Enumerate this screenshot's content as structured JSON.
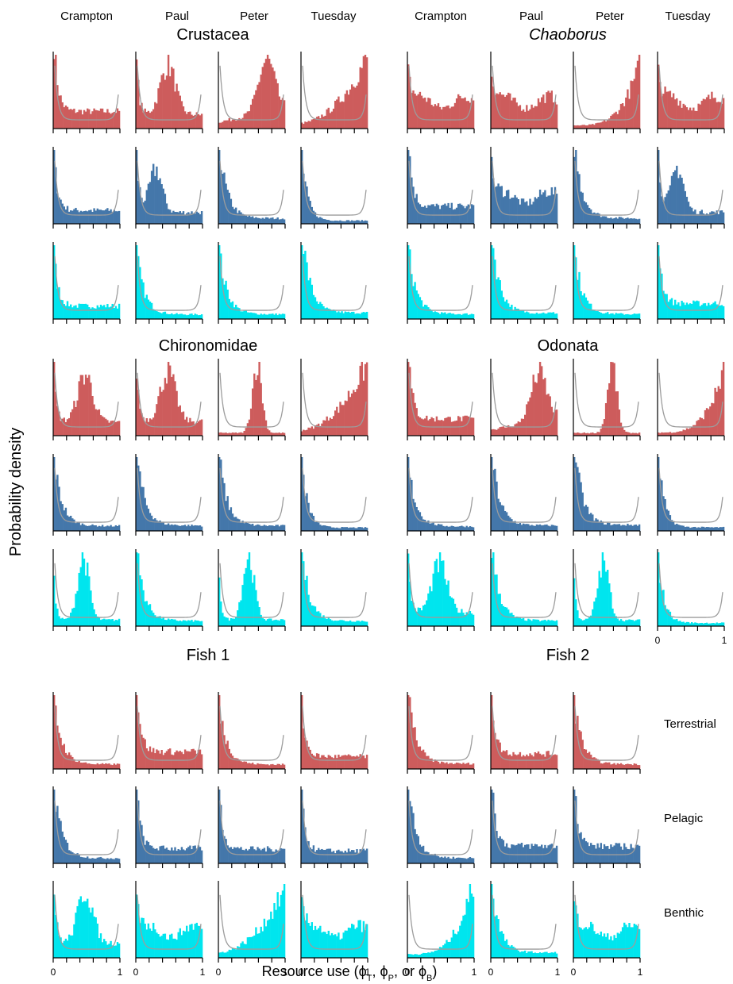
{
  "figure": {
    "y_axis_label": "Probability density",
    "x_axis_label": "Resource use (ϕ",
    "x_axis_label_parts": [
      "Resource use (",
      "ϕ",
      "T",
      ", ",
      "ϕ",
      "P",
      ", or ",
      "ϕ",
      "B",
      ")"
    ],
    "lakes": [
      "Crampton",
      "Paul",
      "Peter",
      "Tuesday"
    ],
    "resource_rows": [
      "Terrestrial",
      "Pelagic",
      "Benthic"
    ],
    "tick_labels": [
      "0",
      "1"
    ]
  },
  "colors": {
    "terrestrial": "#cd5c5c",
    "pelagic": "#4477aa",
    "benthic": "#00e5ee",
    "reference_curve": "#9c9c9c"
  },
  "chart_data": {
    "type": "histogram-grid",
    "xlim": [
      0,
      1
    ],
    "description_series": "each panel: histogram of posterior resource-use proportion with grey reference (prior) density curve",
    "groups": [
      {
        "name": "Crustacea",
        "italic": false,
        "lakes": [
          "Crampton",
          "Paul",
          "Peter",
          "Tuesday"
        ],
        "panels": {
          "Terrestrial": [
            "decreasing-flat",
            "hump-mid",
            "increasing-hump",
            "increasing"
          ],
          "Pelagic": [
            "decreasing-flat",
            "low-hump",
            "decreasing",
            "decreasing-steep"
          ],
          "Benthic": [
            "decreasing-flat",
            "decreasing",
            "decreasing",
            "decreasing"
          ]
        }
      },
      {
        "name": "Chaoborus",
        "italic": true,
        "lakes": [
          "Crampton",
          "Paul",
          "Peter",
          "Tuesday"
        ],
        "panels": {
          "Terrestrial": [
            "flat",
            "flat",
            "increasing-steep",
            "flat"
          ],
          "Pelagic": [
            "decreasing-flat",
            "flat",
            "decreasing",
            "low-hump"
          ],
          "Benthic": [
            "decreasing",
            "decreasing",
            "decreasing",
            "decreasing-flat"
          ]
        }
      },
      {
        "name": "Chironomidae",
        "italic": false,
        "lakes": [
          "Crampton",
          "Paul",
          "Peter",
          "Tuesday"
        ],
        "panels": {
          "Terrestrial": [
            "hump-mid",
            "hump-mid",
            "peak-mid",
            "increasing"
          ],
          "Pelagic": [
            "decreasing",
            "decreasing",
            "decreasing",
            "decreasing-steep"
          ],
          "Benthic": [
            "hump-low",
            "decreasing",
            "hump-low",
            "decreasing"
          ]
        }
      },
      {
        "name": "Odonata",
        "italic": false,
        "lakes": [
          "Crampton",
          "Paul",
          "Peter",
          "Tuesday"
        ],
        "panels": {
          "Terrestrial": [
            "decreasing-flat",
            "increasing-hump",
            "peak-mid",
            "increasing-steep"
          ],
          "Pelagic": [
            "decreasing",
            "decreasing",
            "decreasing",
            "decreasing-steep"
          ],
          "Benthic": [
            "hump-mid",
            "decreasing",
            "hump-low",
            "decreasing-steep"
          ]
        }
      },
      {
        "name": "Fish 1",
        "italic": false,
        "lakes": [
          "Crampton",
          "Paul",
          "Peter",
          "Tuesday"
        ],
        "panels": {
          "Terrestrial": [
            "decreasing",
            "decreasing-flat",
            "decreasing",
            "decreasing-flat"
          ],
          "Pelagic": [
            "decreasing",
            "decreasing-flat",
            "decreasing-flat",
            "decreasing-flat"
          ],
          "Benthic": [
            "hump-mid",
            "flat",
            "increasing",
            "flat"
          ]
        }
      },
      {
        "name": "Fish 2",
        "italic": false,
        "lakes": [
          "Crampton",
          "Paul",
          "Peter"
        ],
        "panels": {
          "Terrestrial": [
            "decreasing",
            "decreasing-flat",
            "decreasing"
          ],
          "Pelagic": [
            "decreasing",
            "decreasing-flat",
            "decreasing-flat"
          ],
          "Benthic": [
            "increasing-steep",
            "decreasing",
            "flat"
          ]
        }
      }
    ]
  }
}
